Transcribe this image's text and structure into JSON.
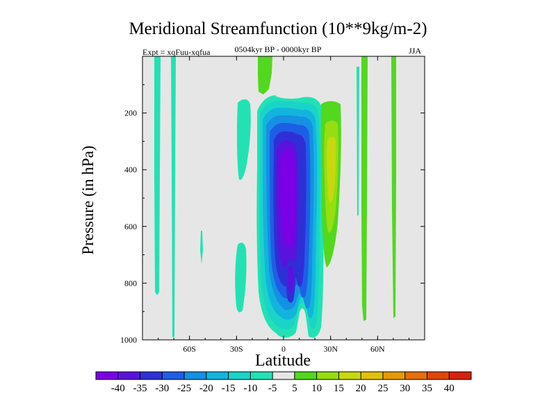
{
  "chart_data": {
    "type": "heatmap",
    "title": "Meridional Streamfunction (10**9kg/m-2)",
    "subtitle": "0504kyr BP - 0000kyr BP",
    "experiment": "Expt = xqFuu-xqfua",
    "season": "JJA",
    "xlabel": "Latitude",
    "ylabel": "Pressure (in hPa)",
    "xlim": [
      -90,
      90
    ],
    "ylim": [
      1000,
      0
    ],
    "x_ticks": [
      -60,
      -30,
      0,
      30,
      60
    ],
    "x_tick_labels": [
      "60S",
      "30S",
      "0",
      "30N",
      "60N"
    ],
    "y_ticks": [
      200,
      400,
      600,
      800,
      1000
    ],
    "y_tick_labels": [
      "200",
      "400",
      "600",
      "800",
      "1000"
    ],
    "background_color": "#e6e6e6",
    "colorbar": {
      "levels": [
        -40,
        -35,
        -30,
        -25,
        -20,
        -15,
        -10,
        -5,
        5,
        10,
        15,
        20,
        25,
        30,
        35,
        40
      ],
      "level_labels": [
        "-40",
        "-35",
        "-30",
        "-25",
        "-20",
        "-15",
        "-10",
        "-5",
        "5",
        "10",
        "15",
        "20",
        "25",
        "30",
        "35",
        "40"
      ],
      "colors": [
        "#7b00e6",
        "#5a12dc",
        "#2f2fd6",
        "#1e5ee6",
        "#1590e2",
        "#12b4de",
        "#1ad4c8",
        "#22e2b4",
        "#e6e6e6",
        "#52d81e",
        "#96de10",
        "#c8d80e",
        "#e0c20a",
        "#e69a08",
        "#e6700a",
        "#e0460a",
        "#d82010"
      ]
    },
    "regions": [
      {
        "name": "strong-negative-core-a",
        "value": -40,
        "lat": 4.5,
        "p": 460,
        "dlat": 4.5,
        "dp": 210
      },
      {
        "name": "strong-negative-core-b",
        "value": -35,
        "lat": 8,
        "p": 720,
        "dlat": 2.5,
        "dp": 100
      },
      {
        "name": "equatorial-cell",
        "value": -10,
        "lat": 6,
        "p": 560,
        "dlat": 13,
        "dp": 420
      },
      {
        "name": "positive-band-30n",
        "value": 15,
        "lat": 29,
        "p": 330,
        "dlat": 4,
        "dp": 80
      }
    ]
  }
}
